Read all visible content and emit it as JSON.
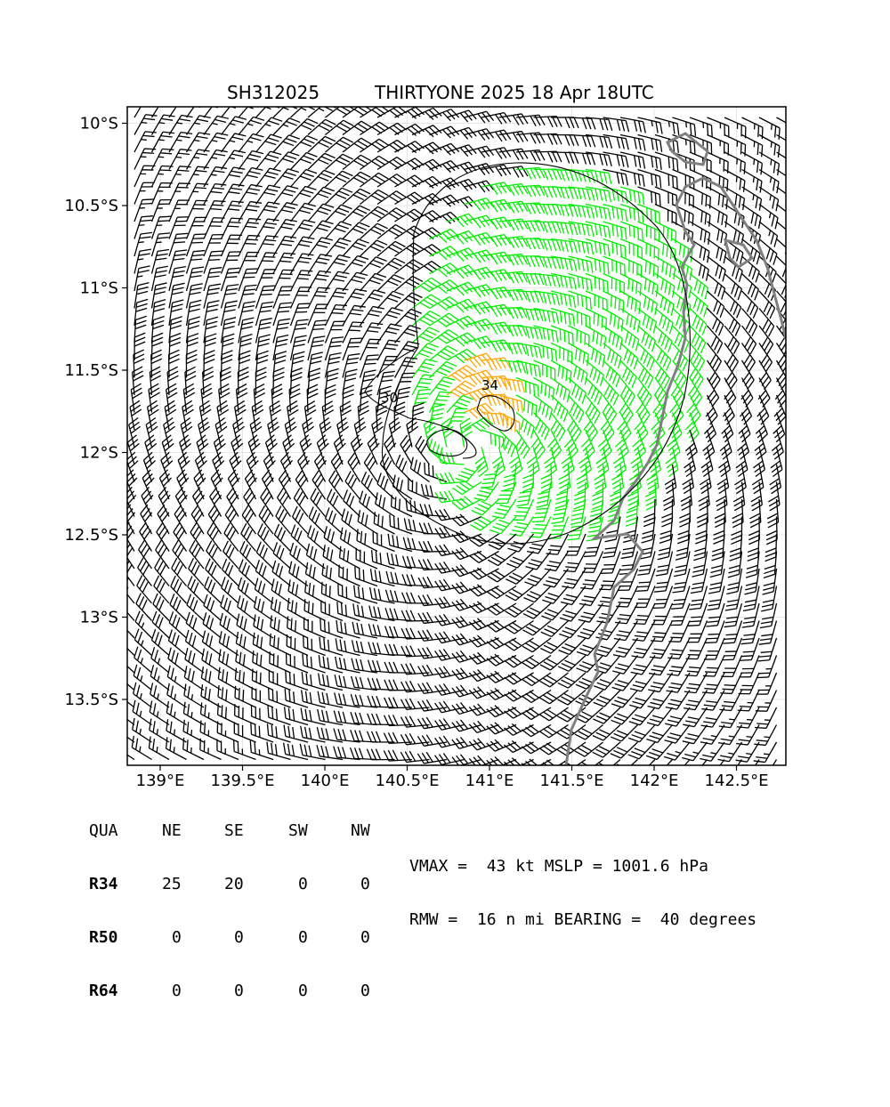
{
  "chart_data": {
    "type": "wind-barb-map",
    "title_left": "SH312025",
    "title_right": "THIRTYONE 2025 18 Apr 18UTC",
    "xlim": [
      138.8,
      142.8
    ],
    "ylim": [
      -13.9,
      -9.9
    ],
    "x_ticks": [
      139.0,
      139.5,
      140.0,
      140.5,
      141.0,
      141.5,
      142.0,
      142.5
    ],
    "x_tick_labels": [
      "139°E",
      "139.5°E",
      "140°E",
      "140.5°E",
      "141°E",
      "141.5°E",
      "142°E",
      "142.5°E"
    ],
    "y_ticks": [
      -10.0,
      -10.5,
      -11.0,
      -11.5,
      -12.0,
      -12.5,
      -13.0,
      -13.5
    ],
    "y_tick_labels": [
      "10°S",
      "10.5°S",
      "11°S",
      "11.5°S",
      "12°S",
      "12.5°S",
      "13°S",
      "13.5°S"
    ],
    "grid": true,
    "storm_center": {
      "lon": 140.88,
      "lat": -11.97
    },
    "contours": [
      {
        "label": "34"
      },
      {
        "label": "30"
      }
    ],
    "colors": {
      "below_34kt": "#000000",
      "gale_34_49kt": "#00ee00",
      "storm_50_63kt": "#ffa500",
      "coastline": "#808080"
    }
  },
  "quadrant_table": {
    "header": [
      "QUA",
      "NE",
      "SE",
      "SW",
      "NW"
    ],
    "rows": [
      {
        "label": "R34",
        "values": [
          "25",
          "20",
          "0",
          "0"
        ]
      },
      {
        "label": "R50",
        "values": [
          "0",
          "0",
          "0",
          "0"
        ]
      },
      {
        "label": "R64",
        "values": [
          "0",
          "0",
          "0",
          "0"
        ]
      }
    ]
  },
  "stats": {
    "line1": "VMAX =  43 kt MSLP = 1001.6 hPa",
    "line2": "RMW =  16 n mi BEARING =  40 degrees"
  }
}
